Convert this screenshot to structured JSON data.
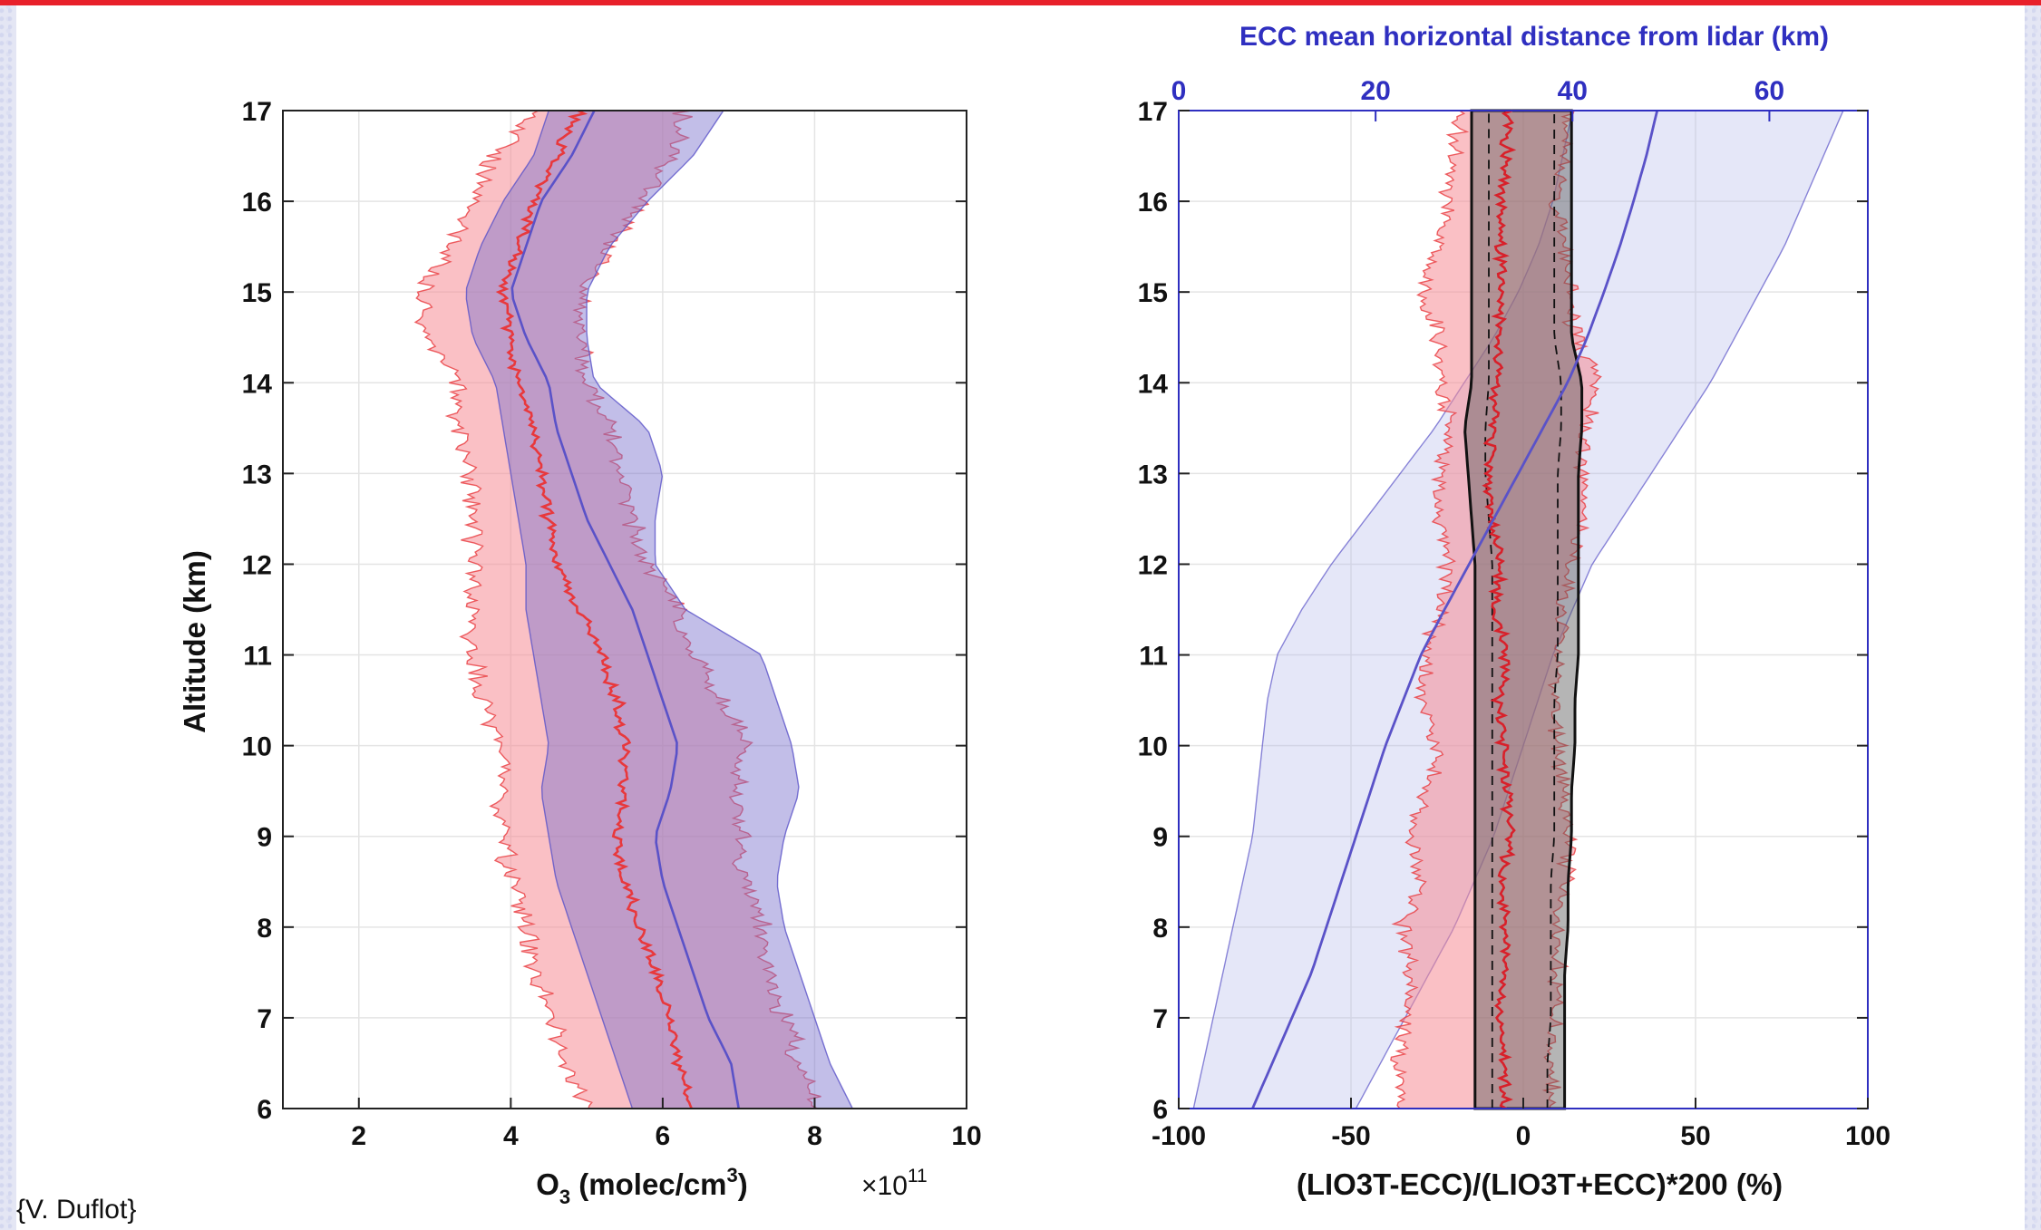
{
  "credit": "{V. Duflot}",
  "chart_data": [
    {
      "type": "line",
      "xlabel": "O3 (molec/cm3)",
      "x_scale_label": "×10^11",
      "x_multiplier_text": "×10",
      "x_multiplier_exp": "11",
      "ylabel": "Altitude (km)",
      "xlim": [
        1,
        10
      ],
      "ylim": [
        6,
        17
      ],
      "xticks": [
        2,
        4,
        6,
        8,
        10
      ],
      "yticks": [
        6,
        7,
        8,
        9,
        10,
        11,
        12,
        13,
        14,
        15,
        16,
        17
      ],
      "grid": true,
      "altitude": [
        6,
        6.5,
        7,
        7.5,
        8,
        8.5,
        9,
        9.5,
        10,
        10.5,
        11,
        11.5,
        12,
        12.5,
        13,
        13.5,
        14,
        14.5,
        15,
        15.5,
        16,
        16.5,
        17
      ],
      "series": [
        {
          "color": "#e8383c",
          "style": "jagged",
          "mean": [
            6.4,
            6.2,
            6.1,
            5.9,
            5.7,
            5.5,
            5.4,
            5.5,
            5.5,
            5.4,
            5.2,
            4.9,
            4.6,
            4.5,
            4.4,
            4.3,
            4.1,
            4.0,
            3.9,
            4.1,
            4.3,
            4.6,
            4.9
          ],
          "lower": [
            5.0,
            4.7,
            4.5,
            4.3,
            4.2,
            4.0,
            3.9,
            3.9,
            3.9,
            3.6,
            3.5,
            3.5,
            3.5,
            3.5,
            3.5,
            3.3,
            3.3,
            2.9,
            2.8,
            3.2,
            3.5,
            3.8,
            4.3
          ],
          "upper": [
            8.1,
            7.8,
            7.6,
            7.4,
            7.3,
            7.1,
            7.0,
            7.0,
            7.1,
            6.8,
            6.4,
            6.2,
            5.8,
            5.6,
            5.5,
            5.3,
            5.0,
            4.9,
            5.0,
            5.3,
            5.7,
            6.1,
            6.3
          ]
        },
        {
          "color": "#5a52c8",
          "style": "smooth",
          "mean": [
            7.0,
            6.9,
            6.6,
            6.4,
            6.2,
            6.0,
            5.9,
            6.1,
            6.2,
            6.0,
            5.8,
            5.6,
            5.3,
            5.0,
            4.8,
            4.6,
            4.5,
            4.2,
            4.0,
            4.2,
            4.4,
            4.8,
            5.1
          ],
          "lower": [
            5.6,
            5.4,
            5.2,
            5.0,
            4.8,
            4.6,
            4.5,
            4.4,
            4.5,
            4.4,
            4.3,
            4.2,
            4.2,
            4.1,
            4.0,
            3.9,
            3.8,
            3.5,
            3.4,
            3.6,
            3.9,
            4.3,
            4.5
          ],
          "upper": [
            8.5,
            8.2,
            8.0,
            7.8,
            7.6,
            7.5,
            7.6,
            7.8,
            7.7,
            7.5,
            7.3,
            6.3,
            5.9,
            5.9,
            6.0,
            5.8,
            5.1,
            5.0,
            5.0,
            5.3,
            5.8,
            6.4,
            6.8
          ]
        }
      ]
    },
    {
      "type": "line",
      "xlabel": "(LIO3T-ECC)/(LIO3T+ECC)*200 (%)",
      "x2label": "ECC mean horizontal distance from lidar (km)",
      "xlim": [
        -100,
        100
      ],
      "x2lim": [
        0,
        70
      ],
      "ylim": [
        6,
        17
      ],
      "xticks": [
        -100,
        -50,
        0,
        50,
        100
      ],
      "x2ticks": [
        0,
        20,
        40,
        60
      ],
      "yticks": [
        6,
        7,
        8,
        9,
        10,
        11,
        12,
        13,
        14,
        15,
        16,
        17
      ],
      "grid": true,
      "altitude": [
        6,
        6.5,
        7,
        7.5,
        8,
        8.5,
        9,
        9.5,
        10,
        10.5,
        11,
        11.5,
        12,
        12.5,
        13,
        13.5,
        14,
        14.5,
        15,
        15.5,
        16,
        16.5,
        17
      ],
      "series": [
        {
          "color": "#e8383c",
          "style": "jagged",
          "mean": [
            -5,
            -6,
            -7,
            -6,
            -5,
            -6,
            -4,
            -5,
            -6,
            -7,
            -5,
            -8,
            -7,
            -9,
            -10,
            -9,
            -8,
            -7,
            -6,
            -7,
            -6,
            -5,
            -4
          ],
          "lower": [
            -35,
            -36,
            -34,
            -33,
            -35,
            -30,
            -32,
            -28,
            -25,
            -30,
            -28,
            -24,
            -22,
            -25,
            -24,
            -22,
            -24,
            -24,
            -30,
            -25,
            -22,
            -20,
            -18
          ],
          "upper": [
            8,
            8,
            9,
            10,
            10,
            12,
            14,
            12,
            10,
            9,
            10,
            12,
            14,
            18,
            17,
            18,
            22,
            15,
            14,
            12,
            10,
            12,
            14
          ]
        },
        {
          "color": "#222222",
          "style": "band",
          "lower": [
            -14,
            -14,
            -14,
            -14,
            -14,
            -14,
            -14,
            -14,
            -14,
            -14,
            -14,
            -14,
            -14,
            -15,
            -16,
            -17,
            -15,
            -15,
            -15,
            -15,
            -15,
            -15,
            -15
          ],
          "upper": [
            12,
            12,
            12,
            12,
            13,
            13,
            14,
            14,
            15,
            15,
            16,
            16,
            16,
            16,
            16,
            17,
            17,
            14,
            14,
            14,
            14,
            14,
            14
          ],
          "inner_lower": [
            -9,
            -9,
            -9,
            -9,
            -9,
            -9,
            -9,
            -9,
            -9,
            -9,
            -9,
            -9,
            -9,
            -10,
            -11,
            -11,
            -10,
            -10,
            -10,
            -10,
            -10,
            -10,
            -10
          ],
          "inner_upper": [
            7,
            7,
            8,
            8,
            8,
            8,
            9,
            9,
            9,
            9,
            10,
            10,
            10,
            10,
            10,
            11,
            11,
            9,
            9,
            9,
            9,
            9,
            9
          ]
        },
        {
          "color": "#5a52c8",
          "style": "distance",
          "axis": "x2",
          "mean": [
            7.5,
            9.5,
            11.5,
            13.5,
            15.0,
            16.5,
            18.0,
            19.5,
            21.0,
            22.8,
            24.6,
            27.0,
            29.5,
            32.0,
            34.5,
            37.0,
            39.5,
            41.5,
            43.2,
            44.8,
            46.2,
            47.5,
            48.6
          ],
          "lower": [
            1.5,
            2.5,
            3.5,
            4.5,
            5.5,
            6.5,
            7.5,
            8.0,
            8.5,
            9.0,
            10.0,
            12.5,
            15.5,
            19.0,
            22.5,
            26.0,
            29.0,
            32.0,
            34.5,
            36.5,
            38.0,
            39.0,
            40.0
          ],
          "upper": [
            18.0,
            20.5,
            23.0,
            25.5,
            28.0,
            30.0,
            32.0,
            33.5,
            35.0,
            36.5,
            38.0,
            40.0,
            42.0,
            45.0,
            48.0,
            51.0,
            54.0,
            56.5,
            59.0,
            61.5,
            63.5,
            65.5,
            67.5
          ]
        }
      ]
    }
  ]
}
